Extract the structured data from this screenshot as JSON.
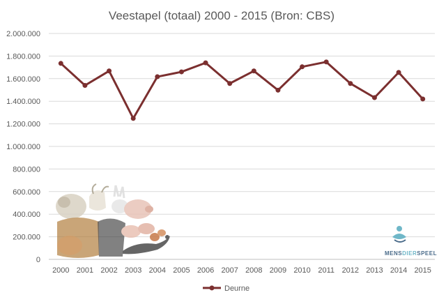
{
  "chart_data": {
    "type": "line",
    "title": "Veestapel (totaal) 2000 - 2015 (Bron: CBS)",
    "xlabel": "",
    "ylabel": "",
    "categories": [
      "2000",
      "2001",
      "2002",
      "2003",
      "2004",
      "2005",
      "2006",
      "2007",
      "2008",
      "2009",
      "2010",
      "2011",
      "2012",
      "2013",
      "2014",
      "2015"
    ],
    "series": [
      {
        "name": "Deurne",
        "color": "#7b2f2f",
        "values": [
          1735000,
          1540000,
          1668000,
          1248000,
          1617000,
          1660000,
          1740000,
          1557000,
          1668000,
          1498000,
          1705000,
          1748000,
          1557000,
          1432000,
          1655000,
          1420000
        ]
      }
    ],
    "ylim": [
      0,
      2000000
    ],
    "yticks": [
      0,
      200000,
      400000,
      600000,
      800000,
      1000000,
      1200000,
      1400000,
      1600000,
      1800000,
      2000000
    ],
    "ytick_labels": [
      "0",
      "200.000",
      "400.000",
      "600.000",
      "800.000",
      "1.000.000",
      "1.200.000",
      "1.400.000",
      "1.600.000",
      "1.800.000",
      "2.000.000"
    ],
    "grid": "horizontal",
    "legend": "bottom",
    "gridline_color": "#d9d9d9"
  },
  "decorations": {
    "animals_collage": "farm-animals-image",
    "logo_text_a": "MENS",
    "logo_text_b": "DIER",
    "logo_text_c": "SPEEL",
    "logo_color_a": "#4a6b8a",
    "logo_color_b": "#6fb7c8"
  }
}
